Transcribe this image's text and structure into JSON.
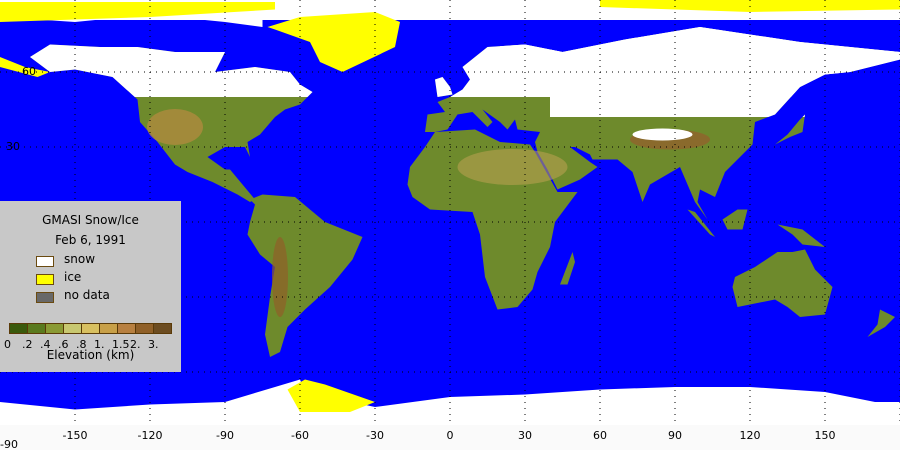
{
  "legend": {
    "title": "GMASI Snow/Ice",
    "date": "Feb  6, 1991",
    "items": [
      {
        "label": "snow",
        "color": "#ffffff"
      },
      {
        "label": "ice",
        "color": "#ffff00"
      },
      {
        "label": "no data",
        "color": "#686868"
      }
    ],
    "elevation_label": "Elevation (km)",
    "elevation_ticks": [
      "0",
      ".2",
      ".4",
      ".6",
      ".8",
      "1.",
      "1.5",
      "2.",
      "3."
    ],
    "elevation_colors": [
      "#3a5a0c",
      "#5a7a1e",
      "#8a9a34",
      "#c8c870",
      "#d8c060",
      "#c8a048",
      "#b88040",
      "#906028",
      "#6c4c20"
    ]
  },
  "axes": {
    "lon_labels": [
      "-150",
      "-120",
      "-90",
      "-60",
      "-30",
      "0",
      "30",
      "60",
      "90",
      "120",
      "150"
    ],
    "lat_labels": [
      "60",
      "30"
    ],
    "corner_label": "-90"
  },
  "colors": {
    "ocean": "#0000ff",
    "land": "#6e8a2c",
    "snow": "#ffffff",
    "ice": "#ffff00"
  }
}
